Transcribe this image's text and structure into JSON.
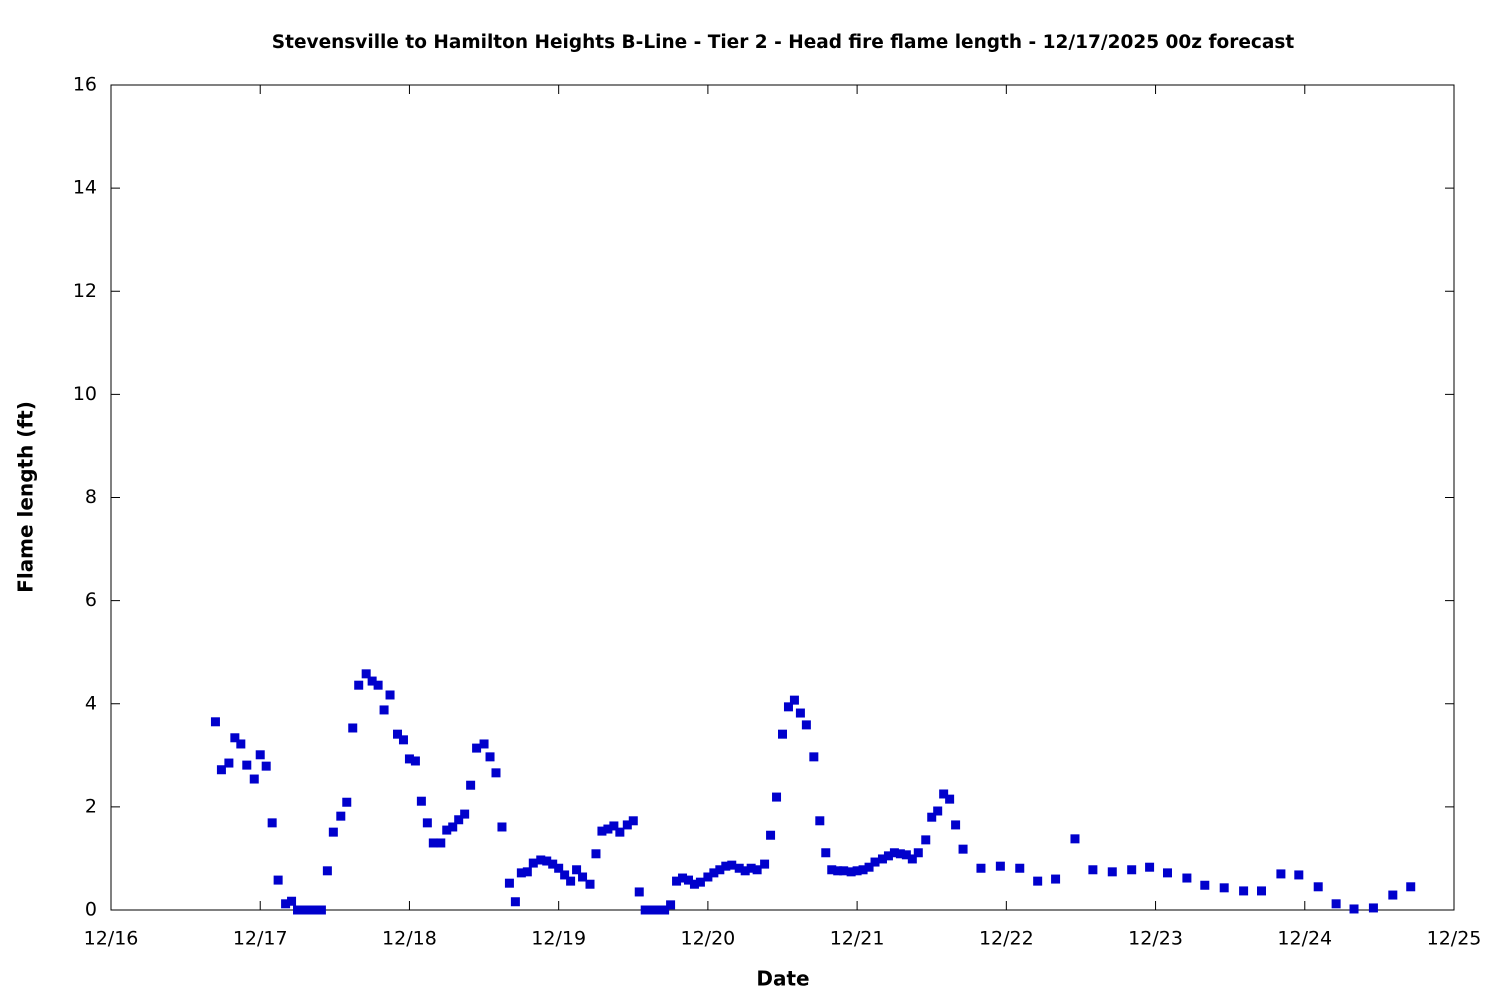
{
  "chart_data": {
    "type": "scatter",
    "title": "Stevensville to Hamilton Heights B-Line - Tier 2 - Head fire flame length - 12/17/2025 00z forecast",
    "xlabel": "Date",
    "ylabel": "Flame length (ft)",
    "color": "#0000cc",
    "xlim": [
      16,
      25
    ],
    "xticks": [
      {
        "value": 16,
        "label": "12/16"
      },
      {
        "value": 17,
        "label": "12/17"
      },
      {
        "value": 18,
        "label": "12/18"
      },
      {
        "value": 19,
        "label": "12/19"
      },
      {
        "value": 20,
        "label": "12/20"
      },
      {
        "value": 21,
        "label": "12/21"
      },
      {
        "value": 22,
        "label": "12/22"
      },
      {
        "value": 23,
        "label": "12/23"
      },
      {
        "value": 24,
        "label": "12/24"
      },
      {
        "value": 25,
        "label": "12/25"
      }
    ],
    "ylim": [
      0,
      16
    ],
    "yticks": [
      0,
      2,
      4,
      6,
      8,
      10,
      12,
      14,
      16
    ],
    "x": [
      16.7,
      16.74,
      16.79,
      16.83,
      16.87,
      16.91,
      16.96,
      17.0,
      17.04,
      17.08,
      17.12,
      17.17,
      17.21,
      17.25,
      17.29,
      17.33,
      17.37,
      17.41,
      17.45,
      17.49,
      17.54,
      17.58,
      17.62,
      17.66,
      17.71,
      17.75,
      17.79,
      17.83,
      17.87,
      17.92,
      17.96,
      18.0,
      18.04,
      18.08,
      18.12,
      18.16,
      18.21,
      18.25,
      18.29,
      18.33,
      18.37,
      18.41,
      18.45,
      18.5,
      18.54,
      18.58,
      18.62,
      18.67,
      18.71,
      18.75,
      18.79,
      18.83,
      18.88,
      18.92,
      18.96,
      19.0,
      19.04,
      19.08,
      19.12,
      19.16,
      19.21,
      19.25,
      19.29,
      19.33,
      19.37,
      19.41,
      19.46,
      19.5,
      19.54,
      19.58,
      19.62,
      19.67,
      19.71,
      19.75,
      19.79,
      19.83,
      19.87,
      19.91,
      19.95,
      20.0,
      20.04,
      20.08,
      20.12,
      20.16,
      20.21,
      20.25,
      20.29,
      20.33,
      20.38,
      20.42,
      20.46,
      20.5,
      20.54,
      20.58,
      20.62,
      20.66,
      20.71,
      20.75,
      20.79,
      20.83,
      20.87,
      20.91,
      20.96,
      21.0,
      21.04,
      21.08,
      21.12,
      21.17,
      21.21,
      21.25,
      21.29,
      21.33,
      21.37,
      21.41,
      21.46,
      21.5,
      21.54,
      21.58,
      21.62,
      21.66,
      21.71,
      21.83,
      21.96,
      22.09,
      22.21,
      22.33,
      22.46,
      22.58,
      22.71,
      22.84,
      22.96,
      23.08,
      23.21,
      23.33,
      23.46,
      23.59,
      23.71,
      23.84,
      23.96,
      24.09,
      24.21,
      24.33,
      24.46,
      24.59,
      24.71
    ],
    "values": [
      3.65,
      2.72,
      2.85,
      3.34,
      3.22,
      2.81,
      2.54,
      3.01,
      2.79,
      1.69,
      0.58,
      0.12,
      0.17,
      0,
      0,
      0,
      0,
      0,
      0.76,
      1.51,
      1.82,
      2.09,
      3.53,
      4.36,
      4.58,
      4.44,
      4.36,
      3.88,
      4.17,
      3.41,
      3.3,
      2.93,
      2.89,
      2.11,
      1.69,
      1.3,
      1.3,
      1.55,
      1.61,
      1.75,
      1.86,
      2.42,
      3.14,
      3.22,
      2.97,
      2.66,
      1.61,
      0.52,
      0.16,
      0.72,
      0.74,
      0.91,
      0.97,
      0.95,
      0.89,
      0.81,
      0.68,
      0.56,
      0.78,
      0.64,
      0.5,
      1.09,
      1.53,
      1.57,
      1.63,
      1.51,
      1.65,
      1.73,
      0.35,
      0,
      0,
      0,
      0,
      0.1,
      0.56,
      0.62,
      0.58,
      0.5,
      0.54,
      0.64,
      0.72,
      0.78,
      0.85,
      0.87,
      0.81,
      0.76,
      0.81,
      0.78,
      0.89,
      1.45,
      2.19,
      3.41,
      3.94,
      4.07,
      3.82,
      3.59,
      2.97,
      1.73,
      1.11,
      0.78,
      0.76,
      0.76,
      0.74,
      0.76,
      0.78,
      0.83,
      0.93,
      0.99,
      1.05,
      1.11,
      1.09,
      1.07,
      0.99,
      1.11,
      1.36,
      1.8,
      1.92,
      2.25,
      2.15,
      1.65,
      1.18,
      0.81,
      0.85,
      0.81,
      0.56,
      0.6,
      1.38,
      0.78,
      0.74,
      0.78,
      0.83,
      0.72,
      0.62,
      0.48,
      0.43,
      0.37,
      0.37,
      0.7,
      0.68,
      0.45,
      0.12,
      0.02,
      0.04,
      0.29,
      0.45
    ]
  }
}
